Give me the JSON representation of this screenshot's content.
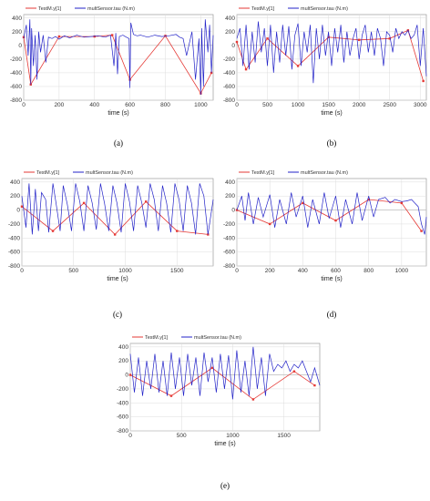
{
  "colors": {
    "red": "#e53935",
    "blue": "#2323c8",
    "grid": "#dcdcdc",
    "axis": "#8a8a8a"
  },
  "chart_data": [
    {
      "type": "line",
      "caption": "(a)",
      "xlabel": "time (s)",
      "xlim": [
        0,
        1070
      ],
      "ylim": [
        -800,
        450
      ],
      "xticks": [
        0,
        200,
        400,
        600,
        800,
        1000
      ],
      "yticks": [
        400,
        200,
        0,
        -200,
        -400,
        -600,
        -800
      ],
      "series": [
        {
          "name": "TestM.y[1]",
          "color": "red",
          "x": [
            0,
            40,
            200,
            400,
            500,
            600,
            800,
            1000,
            1060
          ],
          "y": [
            120,
            -570,
            130,
            130,
            150,
            -500,
            140,
            -700,
            -400
          ]
        },
        {
          "name": "multSensor.tau (N.m)",
          "color": "blue",
          "x": [
            0,
            15,
            25,
            35,
            40,
            45,
            55,
            65,
            75,
            85,
            95,
            110,
            125,
            140,
            160,
            180,
            200,
            230,
            260,
            300,
            340,
            380,
            420,
            460,
            490,
            510,
            520,
            530,
            540,
            560,
            580,
            595,
            600,
            605,
            620,
            640,
            660,
            700,
            740,
            780,
            820,
            860,
            880,
            900,
            920,
            950,
            970,
            990,
            1000,
            1005,
            1015,
            1025,
            1040,
            1050,
            1060,
            1070
          ],
          "y": [
            100,
            300,
            -150,
            380,
            -570,
            250,
            -300,
            150,
            -500,
            200,
            -100,
            150,
            -250,
            120,
            100,
            130,
            90,
            140,
            110,
            150,
            120,
            130,
            140,
            120,
            150,
            -300,
            180,
            -420,
            130,
            150,
            120,
            100,
            -620,
            330,
            160,
            140,
            150,
            120,
            150,
            130,
            140,
            160,
            120,
            100,
            -150,
            200,
            -500,
            100,
            -720,
            250,
            -600,
            380,
            -100,
            300,
            -400,
            150
          ]
        }
      ]
    },
    {
      "type": "line",
      "caption": "(b)",
      "xlabel": "time (s)",
      "xlim": [
        0,
        3100
      ],
      "ylim": [
        -800,
        450
      ],
      "xticks": [
        0,
        500,
        1000,
        1500,
        2000,
        2500,
        3000
      ],
      "yticks": [
        400,
        200,
        0,
        -200,
        -400,
        -600,
        -800
      ],
      "series": [
        {
          "name": "TestM.y[1]",
          "color": "red",
          "x": [
            0,
            150,
            500,
            1000,
            1500,
            2000,
            2500,
            2800,
            3050
          ],
          "y": [
            50,
            -350,
            100,
            -300,
            120,
            80,
            100,
            220,
            -520
          ]
        },
        {
          "name": "multSensor.tau (N.m)",
          "color": "blue",
          "x": [
            0,
            50,
            100,
            150,
            200,
            250,
            300,
            350,
            400,
            450,
            500,
            550,
            600,
            650,
            700,
            750,
            800,
            850,
            900,
            950,
            1000,
            1050,
            1100,
            1150,
            1200,
            1250,
            1300,
            1350,
            1400,
            1450,
            1500,
            1550,
            1600,
            1650,
            1700,
            1750,
            1800,
            1850,
            1900,
            1950,
            2000,
            2050,
            2100,
            2150,
            2200,
            2250,
            2300,
            2350,
            2400,
            2450,
            2500,
            2550,
            2600,
            2650,
            2700,
            2750,
            2800,
            2850,
            2900,
            2950,
            3000,
            3050,
            3100
          ],
          "y": [
            100,
            250,
            -300,
            300,
            -350,
            200,
            -250,
            350,
            -100,
            250,
            -300,
            300,
            -400,
            200,
            -250,
            300,
            -150,
            280,
            -350,
            150,
            320,
            -300,
            200,
            -100,
            300,
            -550,
            250,
            -200,
            300,
            -150,
            200,
            -300,
            250,
            -100,
            300,
            -250,
            200,
            -150,
            100,
            250,
            -200,
            150,
            300,
            -100,
            200,
            -150,
            250,
            100,
            -300,
            200,
            150,
            -100,
            250,
            100,
            200,
            150,
            220,
            100,
            150,
            300,
            -300,
            250,
            -450
          ]
        }
      ]
    },
    {
      "type": "line",
      "caption": "(c)",
      "xlabel": "time (s)",
      "xlim": [
        0,
        1850
      ],
      "ylim": [
        -800,
        450
      ],
      "xticks": [
        0,
        500,
        1000,
        1500
      ],
      "yticks": [
        400,
        200,
        0,
        -200,
        -400,
        -600,
        -800
      ],
      "series": [
        {
          "name": "TestM.y[1]",
          "color": "red",
          "x": [
            0,
            300,
            600,
            900,
            1200,
            1500,
            1800
          ],
          "y": [
            50,
            -300,
            100,
            -350,
            120,
            -300,
            -350
          ]
        },
        {
          "name": "multSensor.tau (N.m)",
          "color": "blue",
          "x": [
            0,
            40,
            70,
            100,
            130,
            160,
            190,
            230,
            260,
            300,
            330,
            370,
            400,
            440,
            480,
            520,
            560,
            600,
            640,
            680,
            720,
            760,
            800,
            840,
            880,
            920,
            960,
            1000,
            1040,
            1080,
            1120,
            1160,
            1200,
            1240,
            1280,
            1320,
            1360,
            1400,
            1440,
            1480,
            1520,
            1560,
            1600,
            1640,
            1680,
            1720,
            1760,
            1800,
            1850
          ],
          "y": [
            200,
            -250,
            380,
            -350,
            300,
            -300,
            250,
            150,
            -320,
            380,
            100,
            -300,
            350,
            80,
            -300,
            380,
            120,
            -300,
            350,
            100,
            -280,
            380,
            90,
            -300,
            350,
            100,
            -320,
            380,
            120,
            -300,
            350,
            100,
            -250,
            380,
            150,
            -300,
            350,
            100,
            -320,
            380,
            150,
            -300,
            350,
            100,
            -350,
            380,
            200,
            -350,
            150
          ]
        }
      ]
    },
    {
      "type": "line",
      "caption": "(d)",
      "xlabel": "time (s)",
      "xlim": [
        0,
        1150
      ],
      "ylim": [
        -800,
        450
      ],
      "xticks": [
        0,
        200,
        400,
        600,
        800,
        1000
      ],
      "yticks": [
        400,
        200,
        0,
        -200,
        -400,
        -600,
        -800
      ],
      "series": [
        {
          "name": "TestM.y[1]",
          "color": "red",
          "x": [
            0,
            200,
            400,
            600,
            800,
            1000,
            1120
          ],
          "y": [
            0,
            -200,
            100,
            -150,
            150,
            100,
            -300
          ]
        },
        {
          "name": "multSensor.tau (N.m)",
          "color": "blue",
          "x": [
            0,
            30,
            50,
            70,
            100,
            130,
            160,
            200,
            230,
            260,
            300,
            330,
            360,
            400,
            430,
            460,
            500,
            530,
            560,
            600,
            630,
            660,
            700,
            730,
            760,
            800,
            830,
            860,
            900,
            930,
            960,
            1000,
            1030,
            1060,
            1080,
            1100,
            1120,
            1140,
            1150
          ],
          "y": [
            0,
            200,
            -150,
            250,
            -200,
            180,
            -100,
            220,
            -250,
            150,
            -200,
            250,
            -100,
            200,
            -250,
            150,
            -200,
            250,
            -120,
            200,
            -250,
            150,
            -200,
            250,
            -150,
            200,
            -100,
            150,
            180,
            100,
            150,
            120,
            130,
            150,
            100,
            50,
            -200,
            -350,
            -100
          ]
        }
      ]
    },
    {
      "type": "line",
      "caption": "(e)",
      "xlabel": "time (s)",
      "xlim": [
        0,
        1850
      ],
      "ylim": [
        -800,
        450
      ],
      "xticks": [
        0,
        500,
        1000,
        1500
      ],
      "yticks": [
        400,
        200,
        0,
        -200,
        -400,
        -600,
        -800
      ],
      "series": [
        {
          "name": "TestM.y[1]",
          "color": "red",
          "x": [
            0,
            400,
            800,
            1200,
            1600,
            1800
          ],
          "y": [
            0,
            -300,
            100,
            -350,
            50,
            -150
          ]
        },
        {
          "name": "multSensor.tau (N.m)",
          "color": "blue",
          "x": [
            0,
            40,
            80,
            120,
            160,
            200,
            240,
            280,
            320,
            360,
            400,
            440,
            480,
            520,
            560,
            600,
            640,
            680,
            720,
            760,
            800,
            840,
            880,
            920,
            960,
            1000,
            1040,
            1080,
            1120,
            1160,
            1200,
            1240,
            1280,
            1320,
            1360,
            1400,
            1440,
            1480,
            1520,
            1560,
            1600,
            1640,
            1680,
            1720,
            1760,
            1800,
            1850
          ],
          "y": [
            300,
            -250,
            250,
            -300,
            200,
            -200,
            300,
            -250,
            200,
            -300,
            320,
            -200,
            250,
            -300,
            300,
            -150,
            250,
            -300,
            320,
            -100,
            250,
            -250,
            300,
            -200,
            280,
            -350,
            350,
            -250,
            200,
            -300,
            400,
            -200,
            250,
            -300,
            300,
            50,
            150,
            100,
            200,
            50,
            150,
            100,
            200,
            50,
            -100,
            100,
            -150
          ]
        }
      ]
    }
  ]
}
